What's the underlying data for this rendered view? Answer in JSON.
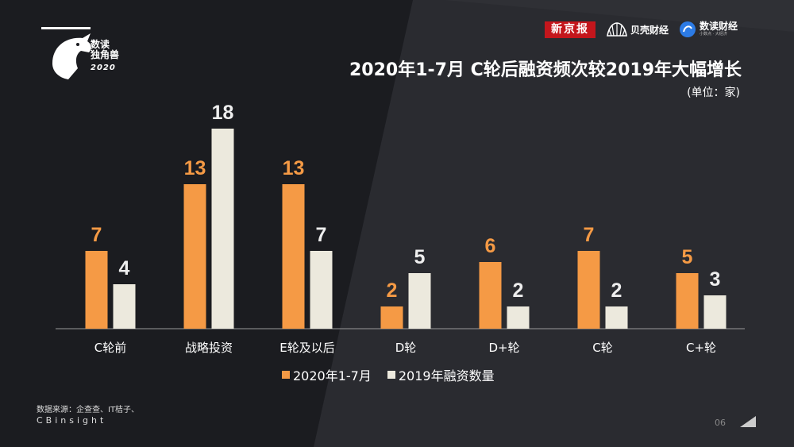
{
  "header": {
    "logo_line1": "数读",
    "logo_line2": "独角兽",
    "logo_year": "2020",
    "brand_xjb": "新京报",
    "brand_bk": "贝壳财经",
    "brand_sd_main": "数读财经",
    "brand_sd_sub": "小数点 · 大经济"
  },
  "colors": {
    "series_2020": "#f59a45",
    "series_2019": "#ece9dd",
    "label_2020": "#f59a45",
    "label_2019": "#eeeeee",
    "background": "#1b1c20"
  },
  "chart_data": {
    "type": "bar",
    "title": "2020年1-7月 C轮后融资频次较2019年大幅增长",
    "unit": "(单位：家)",
    "categories": [
      "C轮前",
      "战略投资",
      "E轮及以后",
      "D轮",
      "D+轮",
      "C轮",
      "C+轮"
    ],
    "series": [
      {
        "name": "2020年1-7月",
        "values": [
          7,
          13,
          13,
          2,
          6,
          7,
          5
        ]
      },
      {
        "name": "2019年融资数量",
        "values": [
          4,
          18,
          7,
          5,
          2,
          2,
          3
        ]
      }
    ],
    "ylim": [
      0,
      18
    ],
    "grid": false,
    "legend_position": "bottom"
  },
  "footer": {
    "source_line1": "数据来源：企查查、IT桔子、",
    "source_line2": "CBinsight",
    "page_number": "06"
  }
}
